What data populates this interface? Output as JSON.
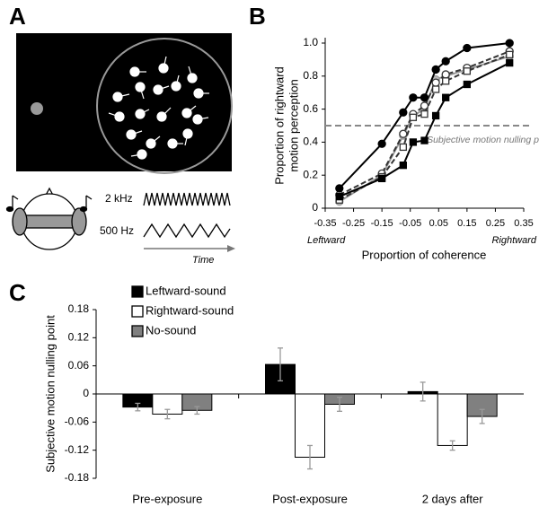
{
  "panel_a": {
    "letter": "A",
    "high_tone": "2 kHz",
    "low_tone": "500 Hz",
    "time_label": "Time"
  },
  "chart_data": [
    {
      "type": "line",
      "letter": "B",
      "y_label_lines": [
        "Proportion of rightward",
        "motion perception"
      ],
      "x_label": "Proportion of coherence",
      "x_end_labels": [
        "Leftward",
        "Rightward"
      ],
      "annotation": "Subjective motion nulling point",
      "reference_y": 0.5,
      "x": [
        -0.3,
        -0.15,
        -0.075,
        -0.04,
        0,
        0.04,
        0.075,
        0.15,
        0.3
      ],
      "xlim": [
        -0.35,
        0.35
      ],
      "xticks": [
        -0.35,
        -0.25,
        -0.15,
        -0.05,
        0.05,
        0.15,
        0.25,
        0.35
      ],
      "ylim": [
        0,
        1
      ],
      "yticks": [
        0,
        0.2,
        0.4,
        0.6,
        0.8,
        {
          "value": 1,
          "label": "1.0"
        }
      ],
      "series": [
        {
          "color": "#999999",
          "marker": "circle",
          "marker_fill": "#bbbbbb",
          "dash": false,
          "values": [
            0.04,
            0.2,
            0.44,
            0.56,
            0.6,
            0.78,
            0.8,
            0.84,
            0.92
          ]
        },
        {
          "color": "#333333",
          "marker": "circle",
          "marker_fill": "#ffffff",
          "dash": true,
          "values": [
            0.08,
            0.21,
            0.45,
            0.57,
            0.62,
            0.76,
            0.81,
            0.85,
            0.95
          ]
        },
        {
          "color": "#333333",
          "marker": "square",
          "marker_fill": "#ffffff",
          "dash": true,
          "values": [
            0.05,
            0.19,
            0.37,
            0.55,
            0.57,
            0.72,
            0.77,
            0.83,
            0.93
          ]
        },
        {
          "color": "#000000",
          "marker": "square",
          "marker_fill": "#000000",
          "dash": false,
          "values": [
            0.07,
            0.18,
            0.26,
            0.4,
            0.41,
            0.56,
            0.67,
            0.75,
            0.88
          ]
        },
        {
          "color": "#000000",
          "marker": "circle",
          "marker_fill": "#000000",
          "dash": false,
          "values": [
            0.12,
            0.39,
            0.58,
            0.67,
            0.67,
            0.84,
            0.89,
            0.97,
            1.0
          ]
        }
      ]
    },
    {
      "type": "bar",
      "letter": "C",
      "y_label": "Subjective motion nulling point",
      "categories": [
        "Pre-exposure",
        "Post-exposure",
        "2 days after"
      ],
      "ylim": [
        -0.18,
        0.18
      ],
      "yticks": [
        -0.18,
        -0.12,
        -0.06,
        0,
        0.06,
        0.12,
        0.18
      ],
      "series": [
        {
          "name": "Leftward-sound",
          "color": "#000000",
          "values": [
            -0.028,
            0.063,
            0.005
          ],
          "errors": [
            0.008,
            0.035,
            0.02
          ]
        },
        {
          "name": "Rightward-sound",
          "color": "#ffffff",
          "values": [
            -0.043,
            -0.135,
            -0.11
          ],
          "errors": [
            0.01,
            0.025,
            0.01
          ]
        },
        {
          "name": "No-sound",
          "color": "#808080",
          "values": [
            -0.035,
            -0.022,
            -0.048
          ],
          "errors": [
            0.008,
            0.015,
            0.015
          ]
        }
      ]
    }
  ]
}
